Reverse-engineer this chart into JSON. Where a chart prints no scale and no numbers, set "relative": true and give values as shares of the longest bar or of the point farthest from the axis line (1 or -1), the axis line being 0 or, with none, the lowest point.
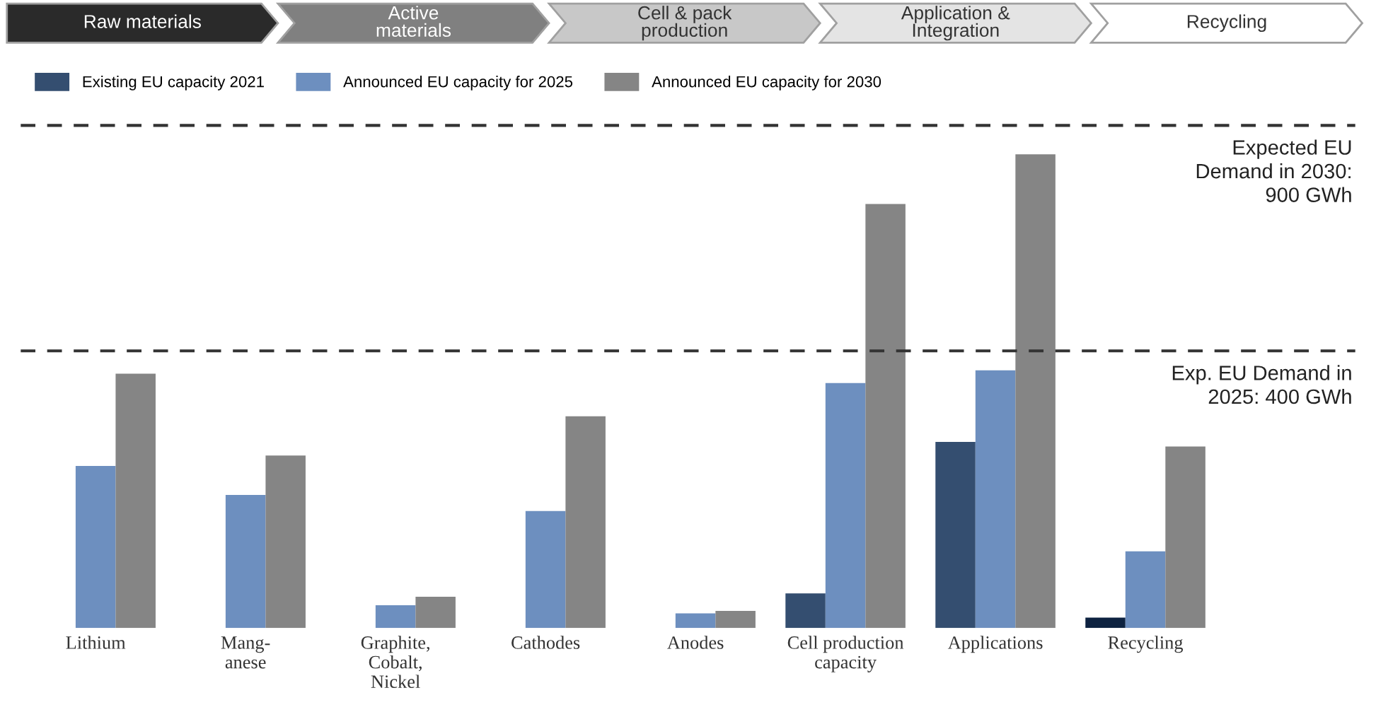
{
  "chart_data": {
    "type": "bar",
    "relative": true,
    "legend": "top left",
    "grid": false,
    "categories": [
      "Lithium",
      "Mang-\nanese",
      "Graphite,\nCobalt,\nNickel",
      "Cathodes",
      "Anodes",
      "Cell production\ncapacity",
      "Applications",
      "Recycling"
    ],
    "series": [
      {
        "name": "Existing EU capacity 2021",
        "color": "#344e70",
        "colors": [
          "#344e70",
          "#344e70",
          "#344e70",
          "#344e70",
          "#344e70",
          "#344e70",
          "#344e70",
          "#0d2240"
        ],
        "values": [
          null,
          null,
          null,
          null,
          null,
          0.073,
          0.393,
          0.022
        ]
      },
      {
        "name": "Announced EU capacity for 2025",
        "color": "#6d8fbf",
        "values": [
          0.342,
          0.281,
          0.048,
          0.247,
          0.031,
          0.517,
          0.544,
          0.162
        ]
      },
      {
        "name": "Announced EU capacity for 2030",
        "color": "#858585",
        "values": [
          0.537,
          0.364,
          0.066,
          0.447,
          0.036,
          0.895,
          1,
          0.383
        ]
      }
    ],
    "ref_lines": [
      {
        "axis": "y",
        "value": 0.585,
        "color": "#333333",
        "line_style": "dashed"
      },
      {
        "axis": "y",
        "value": 1.061,
        "color": "#333333",
        "line_style": "dashed"
      }
    ],
    "annotations": [
      "Raw materials",
      "Active\nmaterials",
      "Cell & pack\nproduction",
      "Application &\nIntegration",
      "Recycling",
      "Exp. EU Demand in\n2025: 400 GWh",
      "Expected EU\nDemand in 2030:\n900 GWh"
    ]
  }
}
